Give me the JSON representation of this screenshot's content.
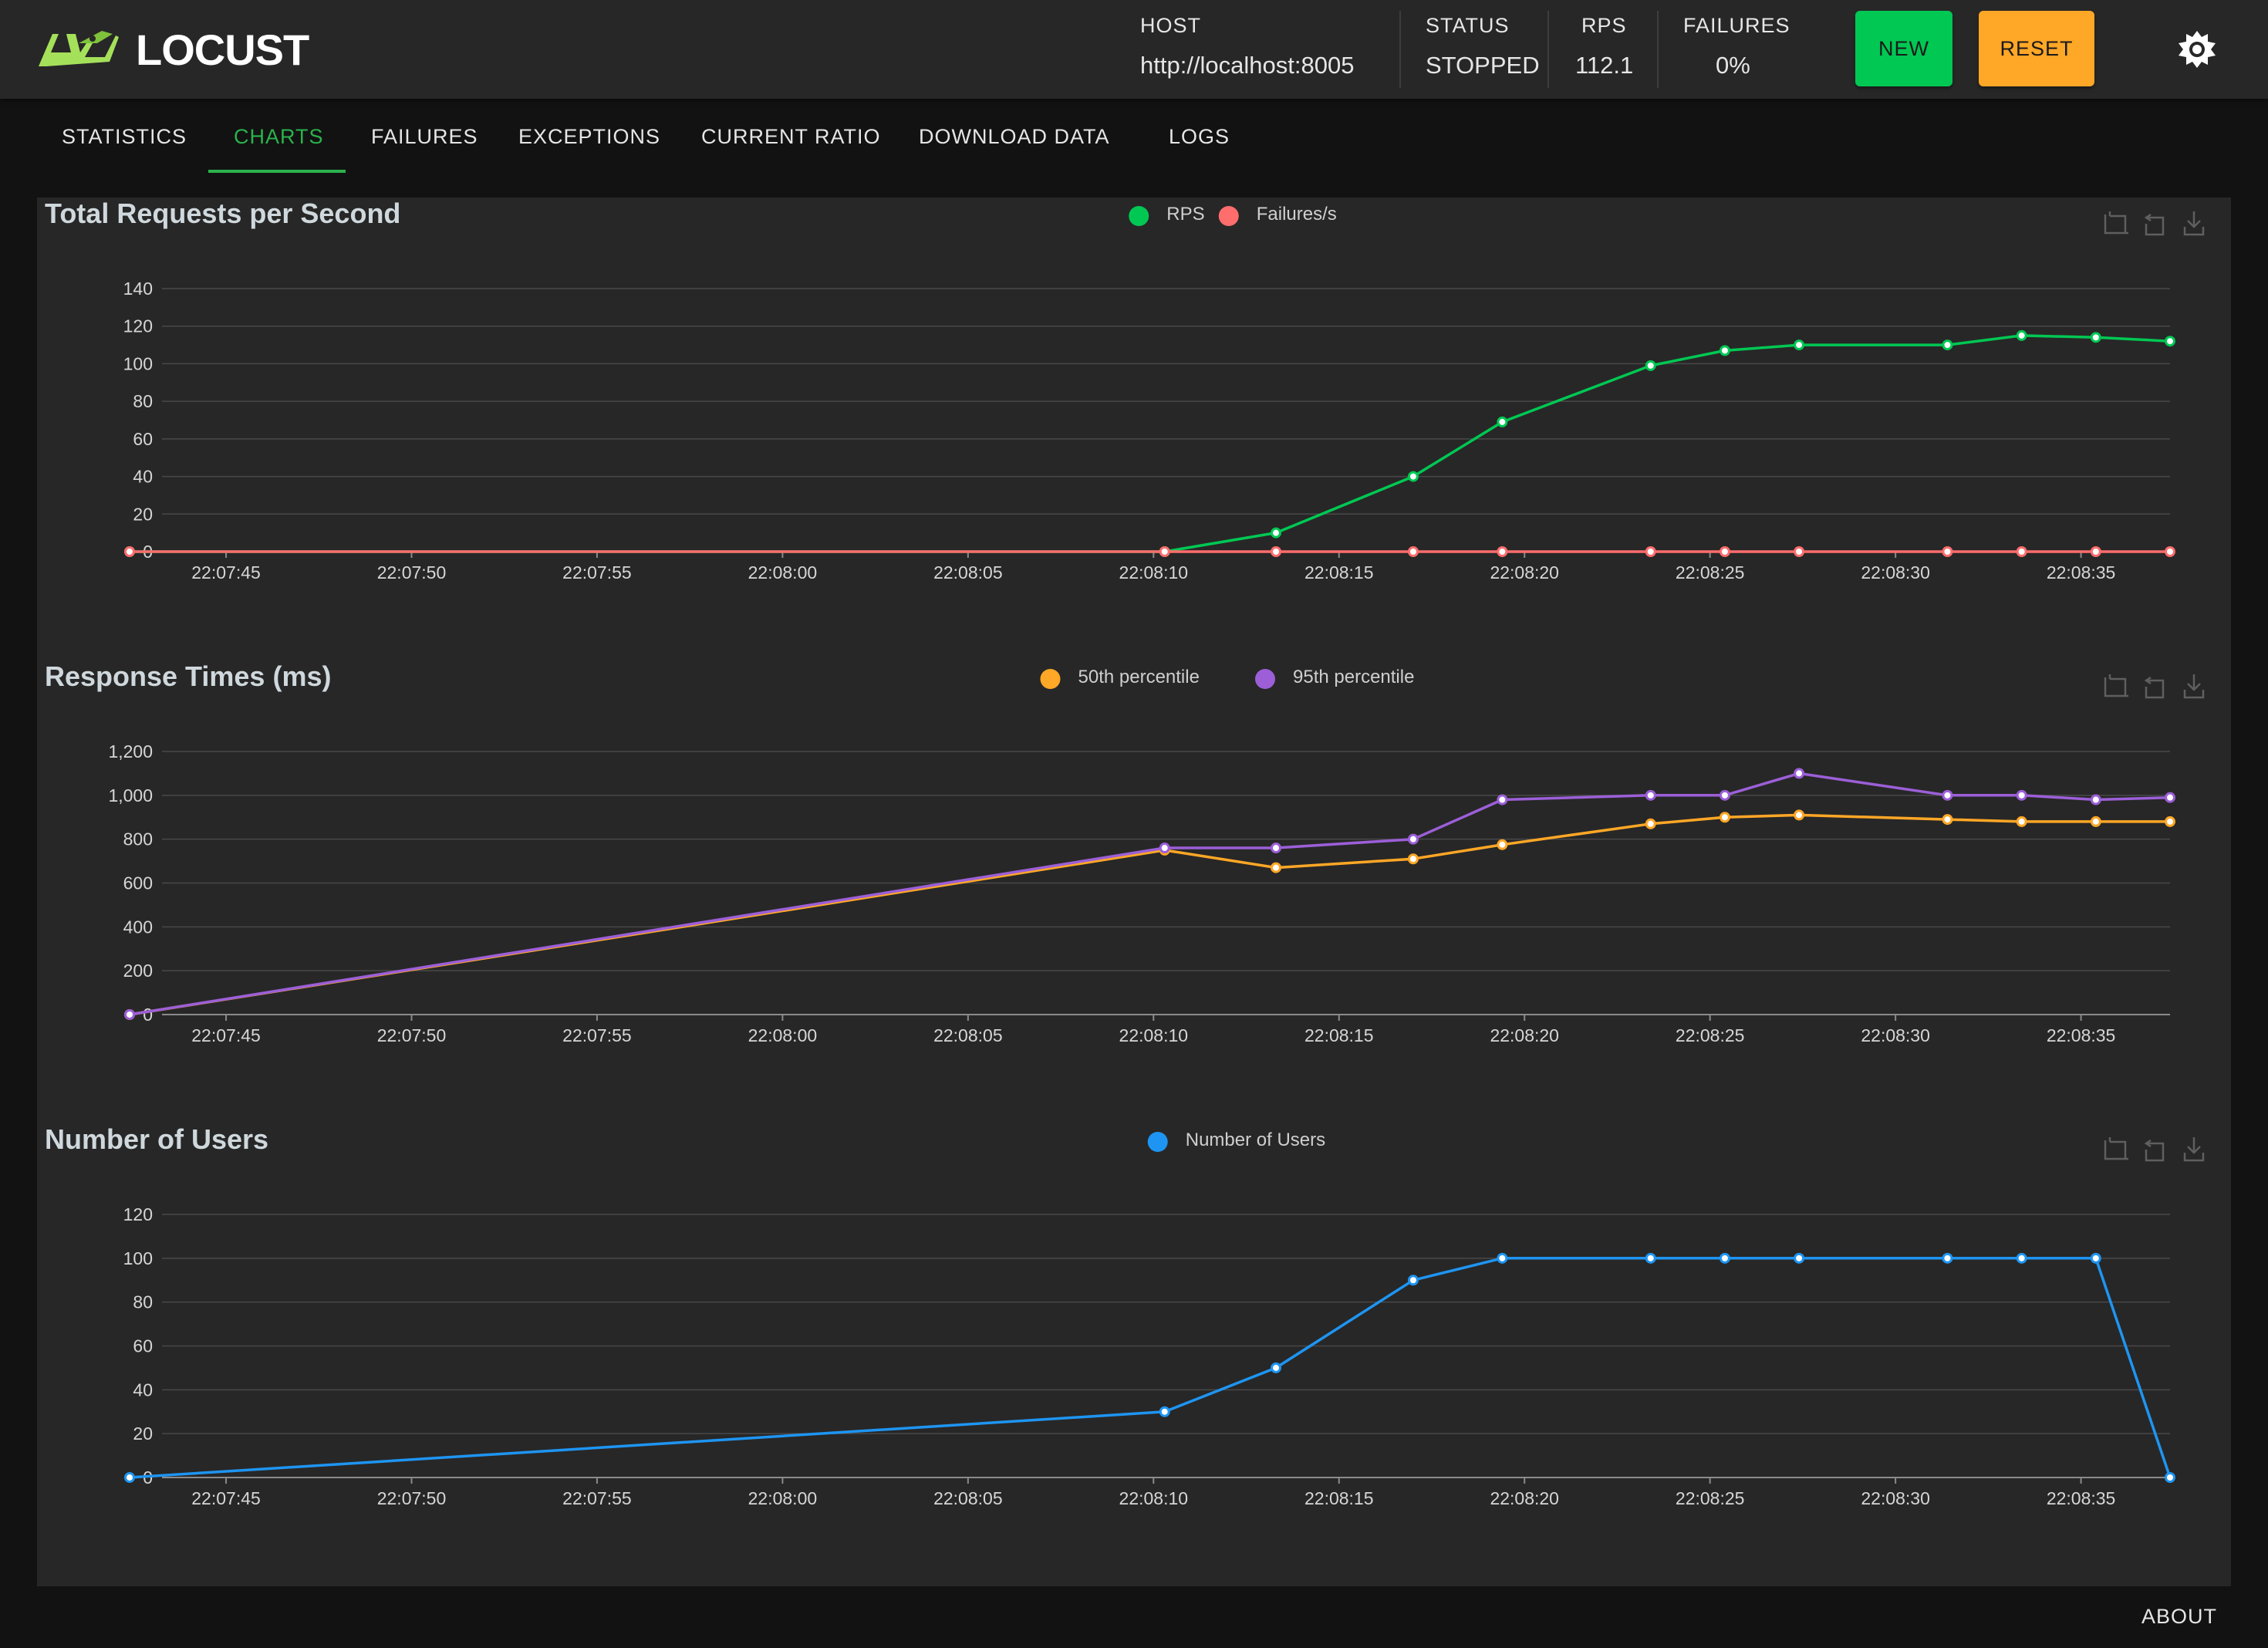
{
  "app": {
    "name": "LOCUST"
  },
  "header": {
    "host_label": "HOST",
    "host_value": "http://localhost:8005",
    "status_label": "STATUS",
    "status_value": "STOPPED",
    "rps_label": "RPS",
    "rps_value": "112.1",
    "failures_label": "FAILURES",
    "failures_value": "0%",
    "new_label": "NEW",
    "reset_label": "RESET"
  },
  "tabs": [
    {
      "label": "STATISTICS"
    },
    {
      "label": "CHARTS",
      "active": true
    },
    {
      "label": "FAILURES"
    },
    {
      "label": "EXCEPTIONS"
    },
    {
      "label": "CURRENT RATIO"
    },
    {
      "label": "DOWNLOAD DATA"
    },
    {
      "label": "LOGS"
    }
  ],
  "footer": {
    "about_label": "ABOUT"
  },
  "icons": {
    "theme": "sun-icon",
    "toolbox": [
      "zoom-icon",
      "zoom-reset-icon",
      "download-icon"
    ]
  },
  "colors": {
    "rps": "#00c853",
    "failures": "#ff6d6d",
    "p50": "#ffa726",
    "p95": "#9c5fd8",
    "users": "#1e95f2",
    "active_tab": "#2bb24c"
  },
  "chart_data": [
    {
      "type": "line",
      "title": "Total Requests per Second",
      "x_ticks": [
        "22:07:45",
        "22:07:50",
        "22:07:55",
        "22:08:00",
        "22:08:05",
        "22:08:10",
        "22:08:15",
        "22:08:20",
        "22:08:25",
        "22:08:30",
        "22:08:35"
      ],
      "y_ticks": [
        "0",
        "20",
        "40",
        "60",
        "80",
        "100",
        "120",
        "140"
      ],
      "ylim": [
        0,
        140
      ],
      "xlim": [
        "22:07:42.4",
        "22:08:37.4"
      ],
      "x": [
        "22:07:42.4",
        "22:08:10.3",
        "22:08:13.3",
        "22:08:17.0",
        "22:08:19.4",
        "22:08:23.4",
        "22:08:25.4",
        "22:08:27.4",
        "22:08:31.4",
        "22:08:33.4",
        "22:08:35.4",
        "22:08:37.4"
      ],
      "series": [
        {
          "name": "RPS",
          "values": [
            0,
            0,
            10,
            40,
            69,
            99,
            107,
            110,
            110,
            115,
            114,
            112
          ]
        },
        {
          "name": "Failures/s",
          "values": [
            0,
            0,
            0,
            0,
            0,
            0,
            0,
            0,
            0,
            0,
            0,
            0
          ]
        }
      ],
      "legend": "top-center",
      "grid": true
    },
    {
      "type": "line",
      "title": "Response Times (ms)",
      "x_ticks": [
        "22:07:45",
        "22:07:50",
        "22:07:55",
        "22:08:00",
        "22:08:05",
        "22:08:10",
        "22:08:15",
        "22:08:20",
        "22:08:25",
        "22:08:30",
        "22:08:35"
      ],
      "y_ticks": [
        "0",
        "200",
        "400",
        "600",
        "800",
        "1,000",
        "1,200"
      ],
      "ylim": [
        0,
        1200
      ],
      "xlim": [
        "22:07:42.4",
        "22:08:37.4"
      ],
      "x": [
        "22:07:42.4",
        "22:08:10.3",
        "22:08:13.3",
        "22:08:17.0",
        "22:08:19.4",
        "22:08:23.4",
        "22:08:25.4",
        "22:08:27.4",
        "22:08:31.4",
        "22:08:33.4",
        "22:08:35.4",
        "22:08:37.4"
      ],
      "series": [
        {
          "name": "50th percentile",
          "values": [
            0,
            750,
            670,
            710,
            775,
            870,
            900,
            910,
            890,
            880,
            880,
            880
          ]
        },
        {
          "name": "95th percentile",
          "values": [
            0,
            760,
            760,
            800,
            980,
            1000,
            1000,
            1100,
            1000,
            1000,
            980,
            990
          ]
        }
      ],
      "legend": "top-center",
      "grid": true
    },
    {
      "type": "line",
      "title": "Number of Users",
      "x_ticks": [
        "22:07:45",
        "22:07:50",
        "22:07:55",
        "22:08:00",
        "22:08:05",
        "22:08:10",
        "22:08:15",
        "22:08:20",
        "22:08:25",
        "22:08:30",
        "22:08:35"
      ],
      "y_ticks": [
        "0",
        "20",
        "40",
        "60",
        "80",
        "100",
        "120"
      ],
      "ylim": [
        0,
        120
      ],
      "xlim": [
        "22:07:42.4",
        "22:08:37.4"
      ],
      "x": [
        "22:07:42.4",
        "22:08:10.3",
        "22:08:13.3",
        "22:08:17.0",
        "22:08:19.4",
        "22:08:23.4",
        "22:08:25.4",
        "22:08:27.4",
        "22:08:31.4",
        "22:08:33.4",
        "22:08:35.4",
        "22:08:37.4"
      ],
      "series": [
        {
          "name": "Number of Users",
          "values": [
            0,
            30,
            50,
            90,
            100,
            100,
            100,
            100,
            100,
            100,
            100,
            0
          ]
        }
      ],
      "legend": "top-center",
      "grid": true
    }
  ]
}
